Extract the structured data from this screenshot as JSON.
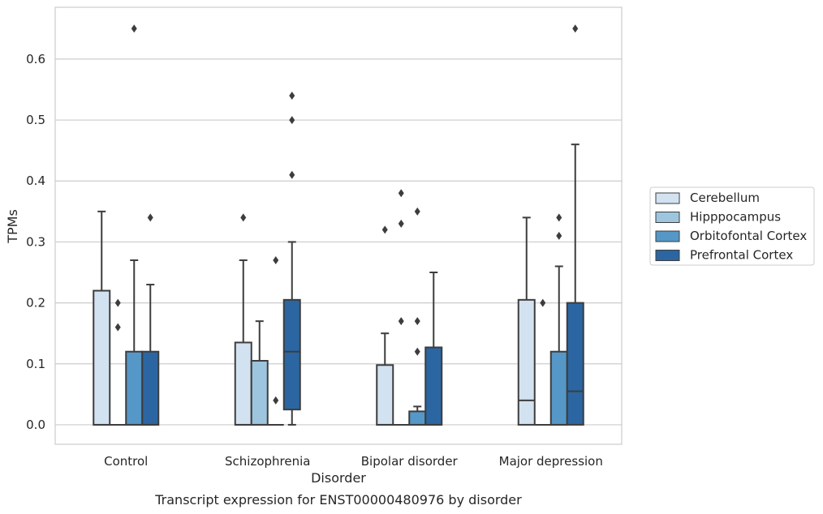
{
  "caption": "Transcript expression for ENST00000480976 by disorder",
  "chart_data": {
    "type": "box",
    "title": "",
    "xlabel": "Disorder",
    "ylabel": "TPMs",
    "ylim": [
      -0.032,
      0.685
    ],
    "yticks": [
      "0.0",
      "0.1",
      "0.2",
      "0.3",
      "0.4",
      "0.5",
      "0.6"
    ],
    "grid": "horizontal",
    "legend_position": "right",
    "categories": [
      "Control",
      "Schizophrenia",
      "Bipolar disorder",
      "Major depression"
    ],
    "series": [
      {
        "name": "Cerebellum",
        "color": "#d3e2f1",
        "boxes": [
          {
            "q1": 0,
            "median": 0,
            "q3": 0.22,
            "whisker_low": 0,
            "whisker_high": 0.35,
            "outliers": []
          },
          {
            "q1": 0,
            "median": 0,
            "q3": 0.135,
            "whisker_low": 0,
            "whisker_high": 0.27,
            "outliers": [
              0.34
            ]
          },
          {
            "q1": 0,
            "median": 0,
            "q3": 0.098,
            "whisker_low": 0,
            "whisker_high": 0.15,
            "outliers": [
              0.32
            ]
          },
          {
            "q1": 0,
            "median": 0.04,
            "q3": 0.205,
            "whisker_low": 0,
            "whisker_high": 0.34,
            "outliers": []
          }
        ]
      },
      {
        "name": "Hipppocampus",
        "color": "#9ec5de",
        "boxes": [
          {
            "q1": 0,
            "median": 0,
            "q3": 0,
            "whisker_low": 0,
            "whisker_high": 0,
            "outliers": [
              0.2,
              0.16
            ]
          },
          {
            "q1": 0,
            "median": 0,
            "q3": 0.105,
            "whisker_low": 0,
            "whisker_high": 0.17,
            "outliers": []
          },
          {
            "q1": 0,
            "median": 0,
            "q3": 0,
            "whisker_low": 0,
            "whisker_high": 0,
            "outliers": [
              0.38,
              0.33,
              0.17
            ]
          },
          {
            "q1": 0,
            "median": 0,
            "q3": 0,
            "whisker_low": 0,
            "whisker_high": 0,
            "outliers": [
              0.2
            ]
          }
        ]
      },
      {
        "name": "Orbitofontal Cortex",
        "color": "#5597c7",
        "boxes": [
          {
            "q1": 0,
            "median": 0,
            "q3": 0.12,
            "whisker_low": 0,
            "whisker_high": 0.27,
            "outliers": [
              0.65
            ]
          },
          {
            "q1": 0,
            "median": 0,
            "q3": 0,
            "whisker_low": 0,
            "whisker_high": 0,
            "outliers": [
              0.27,
              0.04
            ]
          },
          {
            "q1": 0,
            "median": 0,
            "q3": 0.022,
            "whisker_low": 0,
            "whisker_high": 0.03,
            "outliers": [
              0.35,
              0.17,
              0.12
            ]
          },
          {
            "q1": 0,
            "median": 0,
            "q3": 0.12,
            "whisker_low": 0,
            "whisker_high": 0.26,
            "outliers": [
              0.34,
              0.31
            ]
          }
        ]
      },
      {
        "name": "Prefrontal Cortex",
        "color": "#2b66a2",
        "boxes": [
          {
            "q1": 0,
            "median": 0,
            "q3": 0.12,
            "whisker_low": 0,
            "whisker_high": 0.23,
            "outliers": [
              0.34
            ]
          },
          {
            "q1": 0.025,
            "median": 0.12,
            "q3": 0.205,
            "whisker_low": 0,
            "whisker_high": 0.3,
            "outliers": [
              0.54,
              0.41,
              0.5
            ]
          },
          {
            "q1": 0,
            "median": 0,
            "q3": 0.127,
            "whisker_low": 0,
            "whisker_high": 0.25,
            "outliers": []
          },
          {
            "q1": 0,
            "median": 0.055,
            "q3": 0.2,
            "whisker_low": 0,
            "whisker_high": 0.46,
            "outliers": [
              0.65
            ]
          }
        ]
      }
    ]
  }
}
